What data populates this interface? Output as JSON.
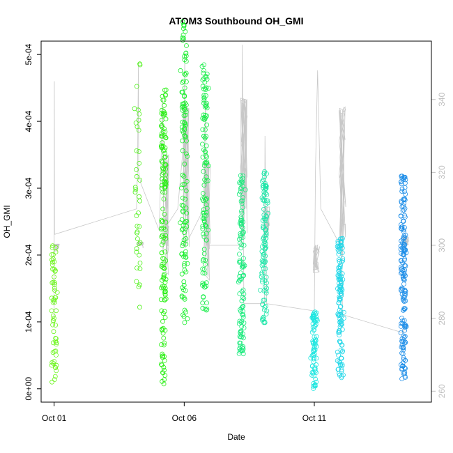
{
  "chart_data": {
    "type": "scatter",
    "title": "ATOM3 Southbound OH_GMI",
    "xlabel": "Date",
    "ylabel": "OH_GMI",
    "xlim": [
      "2017-09-30T12:00",
      "2017-10-15T12:00"
    ],
    "x_ticks": [
      {
        "date": "2017-10-01",
        "label": "Oct 01"
      },
      {
        "date": "2017-10-06",
        "label": "Oct 06"
      },
      {
        "date": "2017-10-11",
        "label": "Oct 11"
      }
    ],
    "ylim": [
      -2e-05,
      0.00052
    ],
    "y_ticks": [
      {
        "value": 0,
        "label": "0e+00"
      },
      {
        "value": 0.0001,
        "label": "1e-04"
      },
      {
        "value": 0.0002,
        "label": "2e-04"
      },
      {
        "value": 0.0003,
        "label": "3e-04"
      },
      {
        "value": 0.0004,
        "label": "4e-04"
      },
      {
        "value": 0.0005,
        "label": "5e-04"
      }
    ],
    "y2lim": [
      257,
      356
    ],
    "y2_ticks": [
      {
        "value": 260,
        "label": "260"
      },
      {
        "value": 280,
        "label": "280"
      },
      {
        "value": 300,
        "label": "300"
      },
      {
        "value": 320,
        "label": "320"
      },
      {
        "value": 340,
        "label": "340"
      }
    ],
    "grid": false,
    "legend": "none",
    "colors": {
      "secondary_line": "#c8c8c8",
      "right_axis": "#bdbdbd",
      "axis": "#000000",
      "box": "#000000"
    },
    "flights": [
      {
        "x": "2017-10-01T00:00",
        "ymin": 5e-06,
        "ymax": 0.000215,
        "color": "#6cf51c",
        "points": 60
      },
      {
        "x": "2017-10-04T05:30",
        "ymin": 0.000115,
        "ymax": 0.0005,
        "color": "#4ff119",
        "points": 40
      },
      {
        "x": "2017-10-05T05:00",
        "ymin": 5e-06,
        "ymax": 0.000455,
        "color": "#28ee12",
        "points": 150
      },
      {
        "x": "2017-10-06T00:00",
        "ymin": 8.5e-05,
        "ymax": 0.000555,
        "color": "#17ee2a",
        "points": 120
      },
      {
        "x": "2017-10-06T19:00",
        "ymin": 0.000115,
        "ymax": 0.000485,
        "color": "#19ed4a",
        "points": 120
      },
      {
        "x": "2017-10-08T05:00",
        "ymin": 4.5e-05,
        "ymax": 0.00032,
        "color": "#16ea7a",
        "points": 110
      },
      {
        "x": "2017-10-09T02:00",
        "ymin": 9.5e-05,
        "ymax": 0.000325,
        "color": "#1ce6a8",
        "points": 110
      },
      {
        "x": "2017-10-11T00:00",
        "ymin": 0.0,
        "ymax": 0.000115,
        "color": "#1ee6e0",
        "points": 80
      },
      {
        "x": "2017-10-12T00:00",
        "ymin": 1.5e-05,
        "ymax": 0.000225,
        "color": "#22d7e8",
        "points": 130
      },
      {
        "x": "2017-10-14T10:00",
        "ymin": 1e-05,
        "ymax": 0.00032,
        "color": "#1e8ee8",
        "points": 170
      }
    ],
    "secondary_series": {
      "axis": "right",
      "color": "#c8c8c8",
      "path": [
        [
          "2017-10-01T00:00",
          280
        ],
        [
          "2017-10-01T00:12",
          345
        ],
        [
          "2017-10-01T00:24",
          303
        ],
        [
          "2017-10-04T04:00",
          310
        ],
        [
          "2017-10-04T05:00",
          322
        ],
        [
          "2017-10-04T05:40",
          350
        ],
        [
          "2017-10-04T06:00",
          320
        ],
        [
          "2017-10-04T08:00",
          317
        ],
        [
          "2017-10-05T01:00",
          304
        ],
        [
          "2017-10-05T04:00",
          340
        ],
        [
          "2017-10-05T05:30",
          300
        ],
        [
          "2017-10-05T07:00",
          305
        ],
        [
          "2017-10-05T18:00",
          310
        ],
        [
          "2017-10-06T00:00",
          330
        ],
        [
          "2017-10-06T00:30",
          352
        ],
        [
          "2017-10-06T01:00",
          300
        ],
        [
          "2017-10-06T18:00",
          310
        ],
        [
          "2017-10-06T19:30",
          340
        ],
        [
          "2017-10-06T21:00",
          300
        ],
        [
          "2017-10-08T05:00",
          300
        ],
        [
          "2017-10-08T05:30",
          355
        ],
        [
          "2017-10-08T07:00",
          284
        ],
        [
          "2017-10-09T02:00",
          284
        ],
        [
          "2017-10-09T02:30",
          330
        ],
        [
          "2017-10-09T04:00",
          284
        ],
        [
          "2017-10-11T00:00",
          282
        ],
        [
          "2017-10-11T01:00",
          320
        ],
        [
          "2017-10-11T03:00",
          348
        ],
        [
          "2017-10-11T06:00",
          310
        ],
        [
          "2017-10-12T00:00",
          300
        ],
        [
          "2017-10-12T00:30",
          330
        ],
        [
          "2017-10-12T02:00",
          281
        ],
        [
          "2017-10-14T10:00",
          276
        ],
        [
          "2017-10-14T12:00",
          278
        ]
      ]
    }
  }
}
